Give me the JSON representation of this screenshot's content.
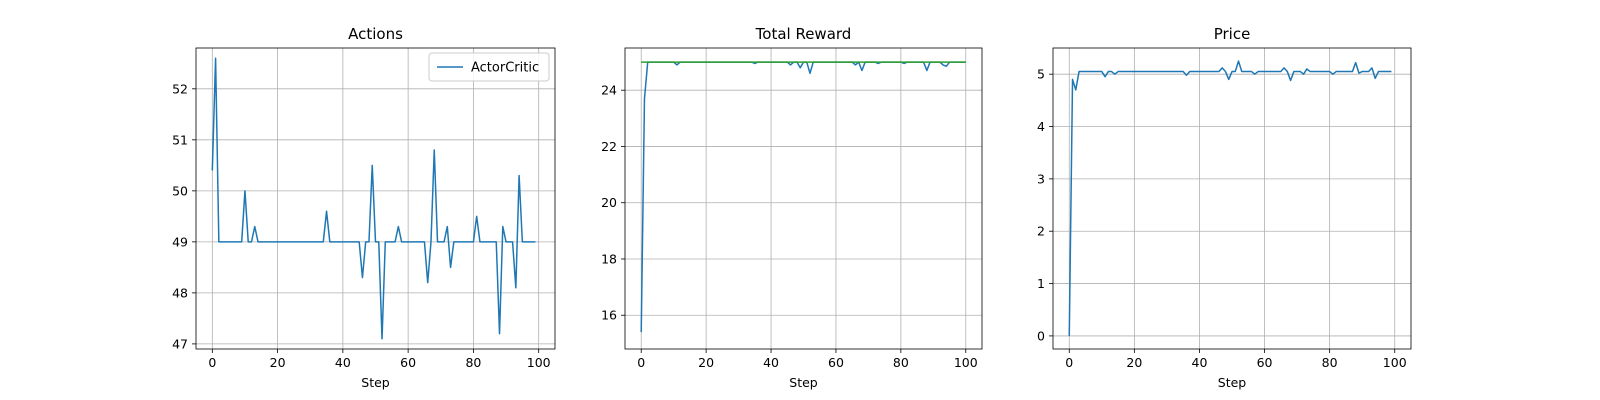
{
  "chart_data": [
    {
      "type": "line",
      "title": "Actions",
      "xlabel": "Step",
      "ylabel": "",
      "xlim": [
        -5,
        105
      ],
      "ylim": [
        46.9,
        52.8
      ],
      "xticks": [
        0,
        20,
        40,
        60,
        80,
        100
      ],
      "yticks": [
        47,
        48,
        49,
        50,
        51,
        52
      ],
      "grid": true,
      "legend": {
        "placement": "top-right",
        "entries": [
          "ActorCritic"
        ]
      },
      "series": [
        {
          "name": "ActorCritic",
          "color": "#1f77b4",
          "x": [
            0,
            1,
            2,
            3,
            4,
            5,
            6,
            7,
            8,
            9,
            10,
            11,
            12,
            13,
            14,
            15,
            16,
            17,
            18,
            19,
            20,
            21,
            22,
            23,
            24,
            25,
            26,
            27,
            28,
            29,
            30,
            31,
            32,
            33,
            34,
            35,
            36,
            37,
            38,
            39,
            40,
            41,
            42,
            43,
            44,
            45,
            46,
            47,
            48,
            49,
            50,
            51,
            52,
            53,
            54,
            55,
            56,
            57,
            58,
            59,
            60,
            61,
            62,
            63,
            64,
            65,
            66,
            67,
            68,
            69,
            70,
            71,
            72,
            73,
            74,
            75,
            76,
            77,
            78,
            79,
            80,
            81,
            82,
            83,
            84,
            85,
            86,
            87,
            88,
            89,
            90,
            91,
            92,
            93,
            94,
            95,
            96,
            97,
            98,
            99
          ],
          "y": [
            50.4,
            52.6,
            49.0,
            49.0,
            49.0,
            49.0,
            49.0,
            49.0,
            49.0,
            49.0,
            50.0,
            49.0,
            49.0,
            49.3,
            49.0,
            49.0,
            49.0,
            49.0,
            49.0,
            49.0,
            49.0,
            49.0,
            49.0,
            49.0,
            49.0,
            49.0,
            49.0,
            49.0,
            49.0,
            49.0,
            49.0,
            49.0,
            49.0,
            49.0,
            49.0,
            49.6,
            49.0,
            49.0,
            49.0,
            49.0,
            49.0,
            49.0,
            49.0,
            49.0,
            49.0,
            49.0,
            48.3,
            49.0,
            49.0,
            50.5,
            49.0,
            49.0,
            47.1,
            49.0,
            49.0,
            49.0,
            49.0,
            49.3,
            49.0,
            49.0,
            49.0,
            49.0,
            49.0,
            49.0,
            49.0,
            49.0,
            48.2,
            49.0,
            50.8,
            49.0,
            49.0,
            49.0,
            49.3,
            48.5,
            49.0,
            49.0,
            49.0,
            49.0,
            49.0,
            49.0,
            49.0,
            49.5,
            49.0,
            49.0,
            49.0,
            49.0,
            49.0,
            49.0,
            47.2,
            49.3,
            49.0,
            49.0,
            49.0,
            48.1,
            50.3,
            49.0,
            49.0,
            49.0,
            49.0,
            49.0
          ]
        }
      ]
    },
    {
      "type": "line",
      "title": "Total Reward",
      "xlabel": "Step",
      "ylabel": "",
      "xlim": [
        -5,
        105
      ],
      "ylim": [
        14.8,
        25.5
      ],
      "xticks": [
        0,
        20,
        40,
        60,
        80,
        100
      ],
      "yticks": [
        16,
        18,
        20,
        22,
        24
      ],
      "grid": true,
      "series": [
        {
          "color": "#1f77b4",
          "x": [
            0,
            1,
            2,
            3,
            4,
            5,
            6,
            7,
            8,
            9,
            10,
            11,
            12,
            13,
            14,
            15,
            16,
            17,
            18,
            19,
            20,
            21,
            22,
            23,
            24,
            25,
            26,
            27,
            28,
            29,
            30,
            31,
            32,
            33,
            34,
            35,
            36,
            37,
            38,
            39,
            40,
            41,
            42,
            43,
            44,
            45,
            46,
            47,
            48,
            49,
            50,
            51,
            52,
            53,
            54,
            55,
            56,
            57,
            58,
            59,
            60,
            61,
            62,
            63,
            64,
            65,
            66,
            67,
            68,
            69,
            70,
            71,
            72,
            73,
            74,
            75,
            76,
            77,
            78,
            79,
            80,
            81,
            82,
            83,
            84,
            85,
            86,
            87,
            88,
            89,
            90,
            91,
            92,
            93,
            94,
            95,
            96,
            97,
            98,
            99,
            100
          ],
          "y": [
            15.4,
            23.7,
            25.0,
            25.0,
            25.0,
            25.0,
            25.0,
            25.0,
            25.0,
            25.0,
            25.0,
            24.9,
            25.0,
            25.0,
            25.0,
            25.0,
            25.0,
            25.0,
            25.0,
            25.0,
            25.0,
            25.0,
            25.0,
            25.0,
            25.0,
            25.0,
            25.0,
            25.0,
            25.0,
            25.0,
            25.0,
            25.0,
            25.0,
            25.0,
            25.0,
            24.95,
            25.0,
            25.0,
            25.0,
            25.0,
            25.0,
            25.0,
            25.0,
            25.0,
            25.0,
            25.0,
            24.9,
            25.0,
            25.0,
            24.8,
            25.0,
            25.0,
            24.6,
            25.0,
            25.0,
            25.0,
            25.0,
            25.0,
            25.0,
            25.0,
            25.0,
            25.0,
            25.0,
            25.0,
            25.0,
            25.0,
            24.9,
            25.0,
            24.7,
            25.0,
            25.0,
            25.0,
            25.0,
            24.95,
            25.0,
            25.0,
            25.0,
            25.0,
            25.0,
            25.0,
            25.0,
            24.95,
            25.0,
            25.0,
            25.0,
            25.0,
            25.0,
            25.0,
            24.7,
            25.0,
            25.0,
            25.0,
            25.0,
            24.9,
            24.85,
            25.0,
            25.0,
            25.0,
            25.0,
            25.0,
            25.0
          ]
        },
        {
          "color": "#2ca02c",
          "x": [
            0,
            100
          ],
          "y": [
            25.0,
            25.0
          ]
        }
      ]
    },
    {
      "type": "line",
      "title": "Price",
      "xlabel": "Step",
      "ylabel": "",
      "xlim": [
        -5,
        105
      ],
      "ylim": [
        -0.25,
        5.5
      ],
      "xticks": [
        0,
        20,
        40,
        60,
        80,
        100
      ],
      "yticks": [
        0,
        1,
        2,
        3,
        4,
        5
      ],
      "grid": true,
      "series": [
        {
          "color": "#1f77b4",
          "x": [
            0,
            1,
            2,
            3,
            4,
            5,
            6,
            7,
            8,
            9,
            10,
            11,
            12,
            13,
            14,
            15,
            16,
            17,
            18,
            19,
            20,
            21,
            22,
            23,
            24,
            25,
            26,
            27,
            28,
            29,
            30,
            31,
            32,
            33,
            34,
            35,
            36,
            37,
            38,
            39,
            40,
            41,
            42,
            43,
            44,
            45,
            46,
            47,
            48,
            49,
            50,
            51,
            52,
            53,
            54,
            55,
            56,
            57,
            58,
            59,
            60,
            61,
            62,
            63,
            64,
            65,
            66,
            67,
            68,
            69,
            70,
            71,
            72,
            73,
            74,
            75,
            76,
            77,
            78,
            79,
            80,
            81,
            82,
            83,
            84,
            85,
            86,
            87,
            88,
            89,
            90,
            91,
            92,
            93,
            94,
            95,
            96,
            97,
            98,
            99
          ],
          "y": [
            0.0,
            4.9,
            4.7,
            5.05,
            5.05,
            5.05,
            5.05,
            5.05,
            5.05,
            5.05,
            5.05,
            4.95,
            5.05,
            5.05,
            5.0,
            5.05,
            5.05,
            5.05,
            5.05,
            5.05,
            5.05,
            5.05,
            5.05,
            5.05,
            5.05,
            5.05,
            5.05,
            5.05,
            5.05,
            5.05,
            5.05,
            5.05,
            5.05,
            5.05,
            5.05,
            5.05,
            4.98,
            5.05,
            5.05,
            5.05,
            5.05,
            5.05,
            5.05,
            5.05,
            5.05,
            5.05,
            5.05,
            5.12,
            5.05,
            4.9,
            5.05,
            5.05,
            5.25,
            5.05,
            5.05,
            5.05,
            5.05,
            5.0,
            5.05,
            5.05,
            5.05,
            5.05,
            5.05,
            5.05,
            5.05,
            5.05,
            5.12,
            5.05,
            4.88,
            5.05,
            5.05,
            5.05,
            5.0,
            5.1,
            5.05,
            5.05,
            5.05,
            5.05,
            5.05,
            5.05,
            5.05,
            5.0,
            5.05,
            5.05,
            5.05,
            5.05,
            5.05,
            5.05,
            5.22,
            5.02,
            5.05,
            5.05,
            5.05,
            5.12,
            4.92,
            5.05,
            5.05,
            5.05,
            5.05,
            5.05
          ]
        }
      ]
    }
  ]
}
